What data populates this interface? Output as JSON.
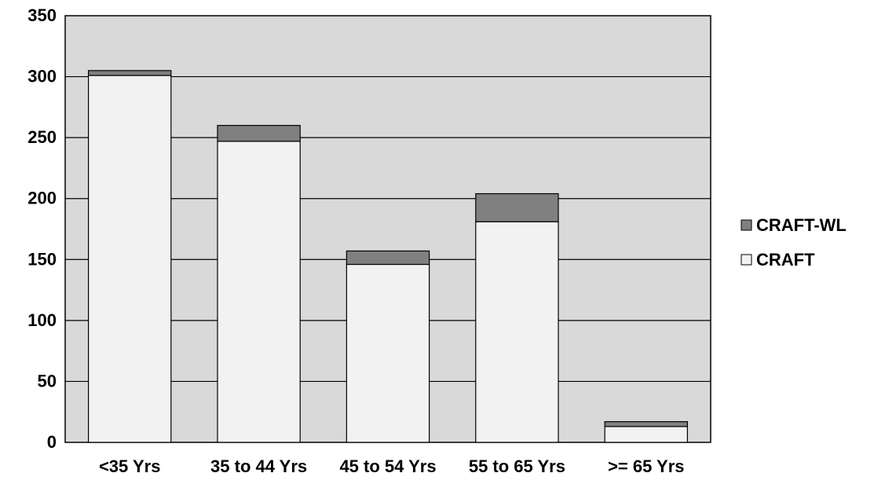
{
  "chart_data": {
    "type": "bar",
    "stacked": true,
    "categories": [
      "<35 Yrs",
      "35 to 44 Yrs",
      "45 to 54 Yrs",
      "55 to 65 Yrs",
      ">= 65 Yrs"
    ],
    "series": [
      {
        "name": "CRAFT",
        "values": [
          301,
          247,
          146,
          181,
          13
        ],
        "color": "#f2f2f2"
      },
      {
        "name": "CRAFT-WL",
        "values": [
          4,
          13,
          11,
          23,
          4
        ],
        "color": "#808080"
      }
    ],
    "ylim": [
      0,
      350
    ],
    "yticks": [
      0,
      50,
      100,
      150,
      200,
      250,
      300,
      350
    ],
    "grid": true,
    "plot_background": "#d9d9d9",
    "legend_position": "right",
    "legend_order": [
      "CRAFT-WL",
      "CRAFT"
    ],
    "title": "",
    "xlabel": "",
    "ylabel": ""
  }
}
